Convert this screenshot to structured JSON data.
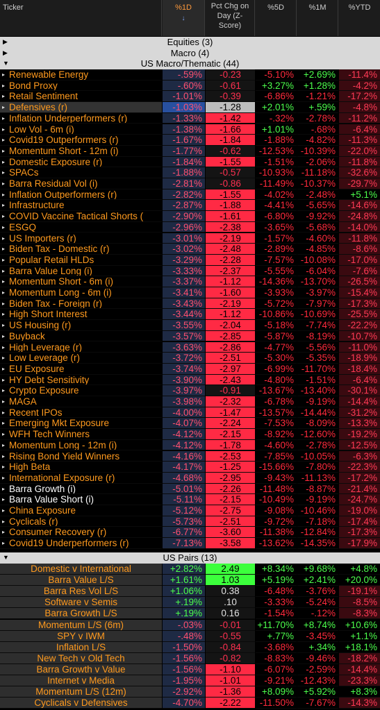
{
  "header": {
    "ticker": "Ticker",
    "pct1d": "%1D",
    "sort_arrow": "↓",
    "zscore": "Pct Chg on Day (Z-Score)",
    "pct5d": "%5D",
    "pct1m": "%1M",
    "pctytd": "%YTD"
  },
  "groups": {
    "equities": "Equities (3)",
    "macro": "Macro (4)",
    "us_macro": "US Macro/Thematic (44)",
    "us_pairs": "US Pairs (13)"
  },
  "colors": {
    "z_pos": "#ff2a44",
    "z_neg_light": "#ff6b80",
    "z_green": "#3cff3c",
    "z_dark": "#1a1a1a"
  },
  "thematic": [
    {
      "name": "Renewable Energy",
      "d1": "-.59%",
      "z": "-0.23",
      "d5": "-5.10%",
      "m1": "+2.69%",
      "ytd": "-11.4%",
      "zc": "dark",
      "m1c": "pos",
      "ytdc": "neg"
    },
    {
      "name": "Bond Proxy",
      "d1": "-.60%",
      "z": "-0.61",
      "d5": "+3.27%",
      "m1": "+1.28%",
      "ytd": "-4.2%",
      "zc": "dark",
      "d5c": "pos",
      "m1c": "pos",
      "ytdc": "neg"
    },
    {
      "name": "Retail Sentiment",
      "d1": "-1.01%",
      "z": "-0.39",
      "d5": "-6.86%",
      "m1": "-1.21%",
      "ytd": "-17.2%",
      "zc": "dark",
      "ytdc": "neg"
    },
    {
      "name": "Defensives (r)",
      "d1": "-1.03%",
      "z": "-1.28",
      "d5": "+2.01%",
      "m1": "+.59%",
      "ytd": "-4.8%",
      "zc": "grey",
      "d5c": "pos",
      "m1c": "pos",
      "ytdc": "neg",
      "hl": true
    },
    {
      "name": "Inflation Underperformers (r)",
      "d1": "-1.33%",
      "z": "-1.42",
      "d5": "-.32%",
      "m1": "-2.78%",
      "ytd": "-11.2%",
      "zc": "red",
      "ytdc": "neg"
    },
    {
      "name": "Low Vol - 6m (i)",
      "d1": "-1.38%",
      "z": "-1.66",
      "d5": "+1.01%",
      "m1": "-.68%",
      "ytd": "-6.4%",
      "zc": "red",
      "d5c": "pos",
      "ytdc": "neg"
    },
    {
      "name": "Covid19 Outperformers (r)",
      "d1": "-1.67%",
      "z": "-1.84",
      "d5": "-1.88%",
      "m1": "-4.82%",
      "ytd": "-11.3%",
      "zc": "red",
      "ytdc": "neg"
    },
    {
      "name": "Momentum Short - 12m (i)",
      "d1": "-1.77%",
      "z": "-0.62",
      "d5": "-12.53%",
      "m1": "-10.39%",
      "ytd": "-22.0%",
      "zc": "dark",
      "ytdc": "neg"
    },
    {
      "name": "Domestic Exposure (r)",
      "d1": "-1.84%",
      "z": "-1.55",
      "d5": "-1.51%",
      "m1": "-2.06%",
      "ytd": "-11.8%",
      "zc": "red",
      "ytdc": "neg"
    },
    {
      "name": "SPACs",
      "d1": "-1.88%",
      "z": "-0.57",
      "d5": "-10.93%",
      "m1": "-11.18%",
      "ytd": "-32.6%",
      "zc": "dark",
      "ytdc": "neg"
    },
    {
      "name": "Barra Residual Vol (i)",
      "d1": "-2.81%",
      "z": "-0.86",
      "d5": "-11.49%",
      "m1": "-10.37%",
      "ytd": "-29.7%",
      "zc": "dark",
      "ytdc": "neg"
    },
    {
      "name": "Inflation Outperformers (r)",
      "d1": "-2.82%",
      "z": "-1.55",
      "d5": "-4.02%",
      "m1": "-2.48%",
      "ytd": "+5.1%",
      "zc": "red",
      "ytdc": "pos"
    },
    {
      "name": "Infrastructure",
      "d1": "-2.87%",
      "z": "-1.88",
      "d5": "-4.41%",
      "m1": "-5.65%",
      "ytd": "-14.6%",
      "zc": "red",
      "ytdc": "neg"
    },
    {
      "name": "COVID Vaccine Tactical Shorts (",
      "d1": "-2.90%",
      "z": "-1.61",
      "d5": "-6.80%",
      "m1": "-9.92%",
      "ytd": "-24.8%",
      "zc": "red",
      "ytdc": "neg"
    },
    {
      "name": "ESGQ",
      "d1": "-2.96%",
      "z": "-2.38",
      "d5": "-3.65%",
      "m1": "-5.68%",
      "ytd": "-14.0%",
      "zc": "red",
      "ytdc": "neg"
    },
    {
      "name": "US Importers (r)",
      "d1": "-3.01%",
      "z": "-2.19",
      "d5": "-1.57%",
      "m1": "-4.60%",
      "ytd": "-11.8%",
      "zc": "red",
      "ytdc": "neg"
    },
    {
      "name": "Biden Tax - Domestic (r)",
      "d1": "-3.02%",
      "z": "-2.48",
      "d5": "-2.89%",
      "m1": "-4.85%",
      "ytd": "-8.6%",
      "zc": "red",
      "ytdc": "neg"
    },
    {
      "name": "Popular Retail HLDs",
      "d1": "-3.29%",
      "z": "-2.28",
      "d5": "-7.57%",
      "m1": "-10.08%",
      "ytd": "-17.0%",
      "zc": "red",
      "ytdc": "neg"
    },
    {
      "name": "Barra Value Long (i)",
      "d1": "-3.33%",
      "z": "-2.37",
      "d5": "-5.55%",
      "m1": "-6.04%",
      "ytd": "-7.6%",
      "zc": "red",
      "ytdc": "neg"
    },
    {
      "name": "Momentum Short - 6m (i)",
      "d1": "-3.37%",
      "z": "-1.12",
      "d5": "-14.36%",
      "m1": "-13.70%",
      "ytd": "-26.5%",
      "zc": "red",
      "ytdc": "neg"
    },
    {
      "name": "Momentum Long - 6m (i)",
      "d1": "-3.41%",
      "z": "-1.60",
      "d5": "-3.93%",
      "m1": "-3.97%",
      "ytd": "-15.4%",
      "zc": "red",
      "ytdc": "neg"
    },
    {
      "name": "Biden Tax - Foreign (r)",
      "d1": "-3.43%",
      "z": "-2.19",
      "d5": "-5.72%",
      "m1": "-7.97%",
      "ytd": "-17.3%",
      "zc": "red",
      "ytdc": "neg"
    },
    {
      "name": "High Short Interest",
      "d1": "-3.44%",
      "z": "-1.12",
      "d5": "-10.86%",
      "m1": "-10.69%",
      "ytd": "-25.5%",
      "zc": "red",
      "ytdc": "neg"
    },
    {
      "name": "US Housing (r)",
      "d1": "-3.55%",
      "z": "-2.04",
      "d5": "-5.18%",
      "m1": "-7.74%",
      "ytd": "-22.2%",
      "zc": "red",
      "ytdc": "neg"
    },
    {
      "name": "Buyback",
      "d1": "-3.57%",
      "z": "-2.85",
      "d5": "-5.87%",
      "m1": "-8.19%",
      "ytd": "-10.7%",
      "zc": "red",
      "ytdc": "neg"
    },
    {
      "name": "High Leverage (r)",
      "d1": "-3.63%",
      "z": "-2.86",
      "d5": "-4.77%",
      "m1": "-5.56%",
      "ytd": "-11.0%",
      "zc": "red",
      "ytdc": "neg"
    },
    {
      "name": "Low Leverage (r)",
      "d1": "-3.72%",
      "z": "-2.51",
      "d5": "-5.30%",
      "m1": "-5.35%",
      "ytd": "-18.9%",
      "zc": "red",
      "ytdc": "neg"
    },
    {
      "name": "EU Exposure",
      "d1": "-3.74%",
      "z": "-2.97",
      "d5": "-6.99%",
      "m1": "-11.70%",
      "ytd": "-18.4%",
      "zc": "red",
      "ytdc": "neg"
    },
    {
      "name": "HY Debt Sensitivity",
      "d1": "-3.90%",
      "z": "-2.43",
      "d5": "-4.80%",
      "m1": "-1.51%",
      "ytd": "-6.4%",
      "zc": "red",
      "ytdc": "neg"
    },
    {
      "name": "Crypto Exposure",
      "d1": "-3.97%",
      "z": "-0.91",
      "d5": "-13.67%",
      "m1": "-13.40%",
      "ytd": "-30.1%",
      "zc": "dark",
      "ytdc": "neg"
    },
    {
      "name": "MAGA",
      "d1": "-3.98%",
      "z": "-2.32",
      "d5": "-6.78%",
      "m1": "-9.19%",
      "ytd": "-14.4%",
      "zc": "red",
      "ytdc": "neg"
    },
    {
      "name": "Recent IPOs",
      "d1": "-4.00%",
      "z": "-1.47",
      "d5": "-13.57%",
      "m1": "-14.44%",
      "ytd": "-31.2%",
      "zc": "red",
      "ytdc": "neg"
    },
    {
      "name": "Emerging Mkt Exposure",
      "d1": "-4.07%",
      "z": "-2.24",
      "d5": "-7.53%",
      "m1": "-8.09%",
      "ytd": "-13.3%",
      "zc": "red",
      "ytdc": "neg"
    },
    {
      "name": "WFH Tech Winners",
      "d1": "-4.12%",
      "z": "-2.15",
      "d5": "-8.92%",
      "m1": "-12.60%",
      "ytd": "-19.2%",
      "zc": "red",
      "ytdc": "neg"
    },
    {
      "name": "Momentum Long - 12m (i)",
      "d1": "-4.12%",
      "z": "-1.78",
      "d5": "-4.60%",
      "m1": "-2.78%",
      "ytd": "-12.5%",
      "zc": "red",
      "ytdc": "neg"
    },
    {
      "name": "Rising Bond Yield Winners",
      "d1": "-4.16%",
      "z": "-2.53",
      "d5": "-7.85%",
      "m1": "-10.05%",
      "ytd": "-6.3%",
      "zc": "red",
      "ytdc": "neg"
    },
    {
      "name": "High Beta",
      "d1": "-4.17%",
      "z": "-1.25",
      "d5": "-15.66%",
      "m1": "-7.80%",
      "ytd": "-22.3%",
      "zc": "red",
      "ytdc": "neg"
    },
    {
      "name": "International Exposure (r)",
      "d1": "-4.68%",
      "z": "-2.95",
      "d5": "-9.43%",
      "m1": "-11.13%",
      "ytd": "-17.2%",
      "zc": "red",
      "ytdc": "neg"
    },
    {
      "name": "Barra Growth (i)",
      "d1": "-5.01%",
      "z": "-2.26",
      "d5": "-11.48%",
      "m1": "-8.87%",
      "ytd": "-21.4%",
      "zc": "red",
      "ytdc": "neg",
      "white": true
    },
    {
      "name": "Barra Value Short (i)",
      "d1": "-5.11%",
      "z": "-2.15",
      "d5": "-10.49%",
      "m1": "-9.19%",
      "ytd": "-24.7%",
      "zc": "red",
      "ytdc": "neg",
      "white": true
    },
    {
      "name": "China Exposure",
      "d1": "-5.12%",
      "z": "-2.75",
      "d5": "-9.08%",
      "m1": "-10.46%",
      "ytd": "-19.0%",
      "zc": "red",
      "ytdc": "neg"
    },
    {
      "name": "Cyclicals (r)",
      "d1": "-5.73%",
      "z": "-2.51",
      "d5": "-9.72%",
      "m1": "-7.18%",
      "ytd": "-17.4%",
      "zc": "red",
      "ytdc": "neg"
    },
    {
      "name": "Consumer Recovery (r)",
      "d1": "-6.77%",
      "z": "-3.60",
      "d5": "-11.38%",
      "m1": "-12.84%",
      "ytd": "-17.3%",
      "zc": "red",
      "ytdc": "neg"
    },
    {
      "name": "Covid19 Underperformers (r)",
      "d1": "-7.13%",
      "z": "-3.58",
      "d5": "-13.62%",
      "m1": "-14.35%",
      "ytd": "-17.9%",
      "zc": "red",
      "ytdc": "neg"
    }
  ],
  "pairs": [
    {
      "name": "Domestic v International",
      "d1": "+2.82%",
      "z": "2.49",
      "d5": "+8.34%",
      "m1": "+9.68%",
      "ytd": "+4.8%",
      "zc": "green",
      "d1c": "pos",
      "d5c": "pos",
      "m1c": "pos",
      "ytdc": "pos"
    },
    {
      "name": "Barra Value L/S",
      "d1": "+1.61%",
      "z": "1.03",
      "d5": "+5.19%",
      "m1": "+2.41%",
      "ytd": "+20.0%",
      "zc": "green",
      "d1c": "pos",
      "d5c": "pos",
      "m1c": "pos",
      "ytdc": "pos"
    },
    {
      "name": "Barra Res Vol L/S",
      "d1": "+1.06%",
      "z": "0.38",
      "d5": "-6.48%",
      "m1": "-3.76%",
      "ytd": "-19.1%",
      "zc": "dark",
      "d1c": "pos",
      "ytdc": "neg"
    },
    {
      "name": "Software v Semis",
      "d1": "+.19%",
      "z": ".10",
      "d5": "-3.33%",
      "m1": "-5.24%",
      "ytd": "-8.5%",
      "zc": "dark",
      "d1c": "pos",
      "ytdc": "neg"
    },
    {
      "name": "Barra Growth L/S",
      "d1": "+.19%",
      "z": "0.16",
      "d5": "-1.54%",
      "m1": "-.12%",
      "ytd": "-8.3%",
      "zc": "dark",
      "d1c": "pos",
      "ytdc": "neg"
    },
    {
      "name": "Momentum L/S (6m)",
      "d1": "-.03%",
      "z": "-0.01",
      "d5": "+11.70%",
      "m1": "+8.74%",
      "ytd": "+10.6%",
      "zc": "dark",
      "d5c": "pos",
      "m1c": "pos",
      "ytdc": "pos"
    },
    {
      "name": "SPY v IWM",
      "d1": "-.48%",
      "z": "-0.55",
      "d5": "+.77%",
      "m1": "-3.45%",
      "ytd": "+1.1%",
      "zc": "dark",
      "d5c": "pos",
      "ytdc": "pos"
    },
    {
      "name": "Inflation L/S",
      "d1": "-1.50%",
      "z": "-0.84",
      "d5": "-3.68%",
      "m1": "+.34%",
      "ytd": "+18.1%",
      "zc": "dark",
      "m1c": "pos",
      "ytdc": "pos"
    },
    {
      "name": "New Tech v Old Tech",
      "d1": "-1.56%",
      "z": "-0.82",
      "d5": "-8.83%",
      "m1": "-9.46%",
      "ytd": "-18.2%",
      "zc": "dark",
      "ytdc": "neg"
    },
    {
      "name": "Barra Growth v Value",
      "d1": "-1.56%",
      "z": "-1.10",
      "d5": "-6.07%",
      "m1": "-2.59%",
      "ytd": "-14.4%",
      "zc": "red",
      "ytdc": "neg"
    },
    {
      "name": "Internet v Media",
      "d1": "-1.95%",
      "z": "-1.01",
      "d5": "-9.21%",
      "m1": "-12.43%",
      "ytd": "-23.3%",
      "zc": "red",
      "ytdc": "neg"
    },
    {
      "name": "Momentum L/S (12m)",
      "d1": "-2.92%",
      "z": "-1.36",
      "d5": "+8.09%",
      "m1": "+5.92%",
      "ytd": "+8.3%",
      "zc": "red",
      "d5c": "pos",
      "m1c": "pos",
      "ytdc": "pos"
    },
    {
      "name": "Cyclicals v Defensives",
      "d1": "-4.70%",
      "z": "-2.22",
      "d5": "-11.50%",
      "m1": "-7.67%",
      "ytd": "-14.3%",
      "zc": "red",
      "ytdc": "neg"
    }
  ]
}
